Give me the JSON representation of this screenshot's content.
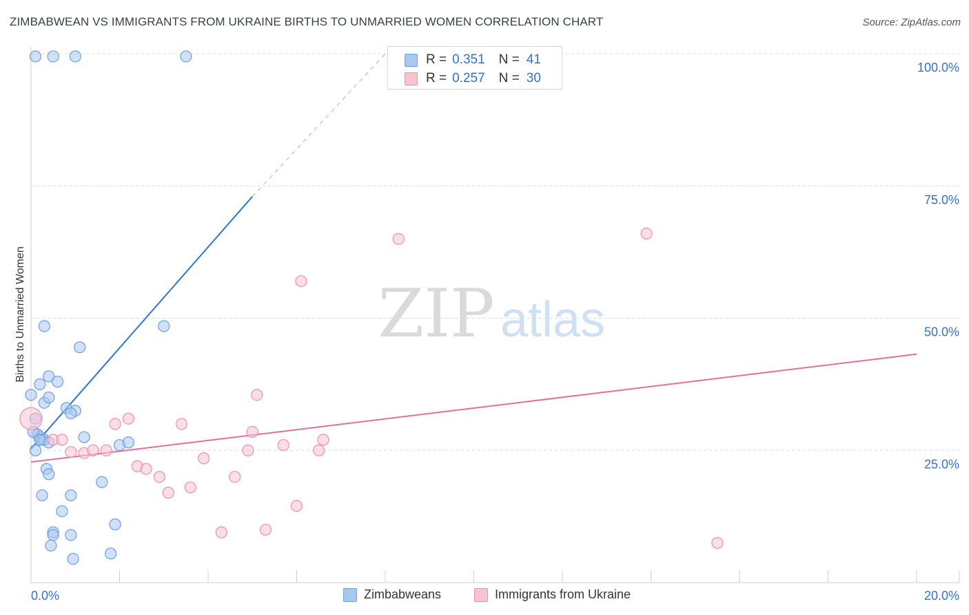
{
  "title": "ZIMBABWEAN VS IMMIGRANTS FROM UKRAINE BIRTHS TO UNMARRIED WOMEN CORRELATION CHART",
  "source": "Source: ZipAtlas.com",
  "watermark": {
    "zip": "ZIP",
    "atlas": "atlas"
  },
  "legend_stats": [
    {
      "r_label": "R =",
      "r_value": "0.351",
      "n_label": "N =",
      "n_value": "41",
      "color": "#a9c8f0",
      "border": "#6d9ee0"
    },
    {
      "r_label": "R =",
      "r_value": "0.257",
      "n_label": "N =",
      "n_value": "30",
      "color": "#f9c3d3",
      "border": "#ec8fab"
    }
  ],
  "chart_data": {
    "type": "scatter",
    "title": "ZIMBABWEAN VS IMMIGRANTS FROM UKRAINE BIRTHS TO UNMARRIED WOMEN CORRELATION CHART",
    "xlabel": "",
    "ylabel": "Births to Unmarried Women",
    "xlim": [
      0,
      20
    ],
    "ylim": [
      0,
      100
    ],
    "x_tick_labels": [
      "0.0%",
      "20.0%"
    ],
    "y_ticks": [
      25,
      50,
      75,
      100
    ],
    "y_tick_labels": [
      "25.0%",
      "50.0%",
      "75.0%",
      "100.0%"
    ],
    "grid": true,
    "series": [
      {
        "name": "Zimbabweans",
        "color": "#a9c8f0",
        "stroke": "#6d9ee0",
        "line_color": "#2f75d0",
        "trend": {
          "x0": 0.0,
          "y0": 25.3,
          "x1": 5.0,
          "y1": 73.0,
          "dash_to_x": 8.0,
          "dash_to_y": 100.0
        },
        "points": [
          [
            0.1,
            99.5
          ],
          [
            0.5,
            99.5
          ],
          [
            1.0,
            99.5
          ],
          [
            3.5,
            99.5
          ],
          [
            0.3,
            48.5
          ],
          [
            3.0,
            48.5
          ],
          [
            1.1,
            44.5
          ],
          [
            0.2,
            37.5
          ],
          [
            0.4,
            39.0
          ],
          [
            0.6,
            38.0
          ],
          [
            0.0,
            35.5
          ],
          [
            0.3,
            34.0
          ],
          [
            0.4,
            35.0
          ],
          [
            0.8,
            33.0
          ],
          [
            1.0,
            32.5
          ],
          [
            0.9,
            32.0
          ],
          [
            0.1,
            31.0
          ],
          [
            0.15,
            28.0
          ],
          [
            0.2,
            27.5
          ],
          [
            0.25,
            27.0
          ],
          [
            0.3,
            27.0
          ],
          [
            0.4,
            26.5
          ],
          [
            0.05,
            28.5
          ],
          [
            0.1,
            25.0
          ],
          [
            1.2,
            27.5
          ],
          [
            2.0,
            26.0
          ],
          [
            2.2,
            26.5
          ],
          [
            0.35,
            21.5
          ],
          [
            0.4,
            20.5
          ],
          [
            1.6,
            19.0
          ],
          [
            0.25,
            16.5
          ],
          [
            0.9,
            16.5
          ],
          [
            0.7,
            13.5
          ],
          [
            1.9,
            11.0
          ],
          [
            0.5,
            9.5
          ],
          [
            0.5,
            9.0
          ],
          [
            0.9,
            9.0
          ],
          [
            0.45,
            7.0
          ],
          [
            1.8,
            5.5
          ],
          [
            0.95,
            4.5
          ],
          [
            0.2,
            27.0
          ]
        ]
      },
      {
        "name": "Immigrants from Ukraine",
        "color": "#f9c3d3",
        "stroke": "#ec8fab",
        "line_color": "#e0709a",
        "trend": {
          "x0": 0.0,
          "y0": 22.8,
          "x1": 20.0,
          "y1": 43.2
        },
        "points": [
          [
            0.0,
            31.0
          ],
          [
            0.5,
            27.0
          ],
          [
            0.7,
            27.0
          ],
          [
            0.9,
            24.7
          ],
          [
            1.2,
            24.5
          ],
          [
            1.4,
            25.0
          ],
          [
            1.7,
            25.0
          ],
          [
            1.9,
            30.0
          ],
          [
            2.2,
            31.0
          ],
          [
            2.4,
            22.0
          ],
          [
            2.6,
            21.5
          ],
          [
            2.9,
            20.0
          ],
          [
            3.1,
            17.0
          ],
          [
            3.4,
            30.0
          ],
          [
            3.6,
            18.0
          ],
          [
            3.9,
            23.5
          ],
          [
            4.3,
            9.5
          ],
          [
            4.6,
            20.0
          ],
          [
            4.9,
            25.0
          ],
          [
            5.0,
            28.5
          ],
          [
            5.1,
            35.5
          ],
          [
            5.3,
            10.0
          ],
          [
            5.7,
            26.0
          ],
          [
            6.0,
            14.5
          ],
          [
            6.1,
            57.0
          ],
          [
            6.5,
            25.0
          ],
          [
            6.6,
            27.0
          ],
          [
            8.3,
            65.0
          ],
          [
            13.9,
            66.0
          ],
          [
            15.5,
            7.5
          ]
        ]
      }
    ]
  }
}
